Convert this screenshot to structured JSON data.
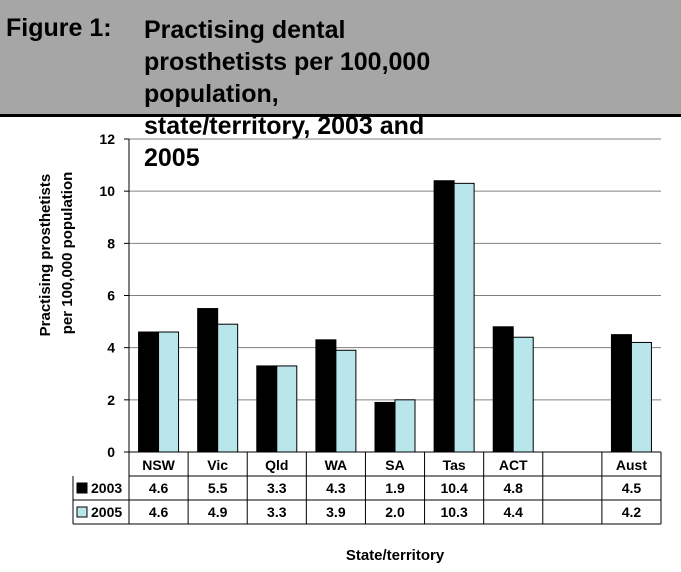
{
  "header": {
    "figure_label": "Figure 1:",
    "title": "Practising dental prosthetists per 100,000 population, state/territory, 2003 and 2005"
  },
  "chart_data": {
    "type": "bar",
    "categories": [
      "NSW",
      "Vic",
      "Qld",
      "WA",
      "SA",
      "Tas",
      "ACT",
      "",
      "Aust"
    ],
    "series": [
      {
        "name": "2003",
        "color": "#000000",
        "values": [
          4.6,
          5.5,
          3.3,
          4.3,
          1.9,
          10.4,
          4.8,
          null,
          4.5
        ],
        "labels": [
          "4.6",
          "5.5",
          "3.3",
          "4.3",
          "1.9",
          "10.4",
          "4.8",
          "",
          "4.5"
        ]
      },
      {
        "name": "2005",
        "color": "#b9e6ea",
        "values": [
          4.6,
          4.9,
          3.3,
          3.9,
          2.0,
          10.3,
          4.4,
          null,
          4.2
        ],
        "labels": [
          "4.6",
          "4.9",
          "3.3",
          "3.9",
          "2.0",
          "10.3",
          "4.4",
          "",
          "4.2"
        ]
      }
    ],
    "ylabel": "Practising prosthetists per 100,000 population",
    "xlabel": "State/territory",
    "ylim": [
      0,
      12
    ],
    "yticks": [
      "0",
      "2",
      "4",
      "6",
      "8",
      "10",
      "12"
    ],
    "grid": true,
    "data_table": true
  }
}
